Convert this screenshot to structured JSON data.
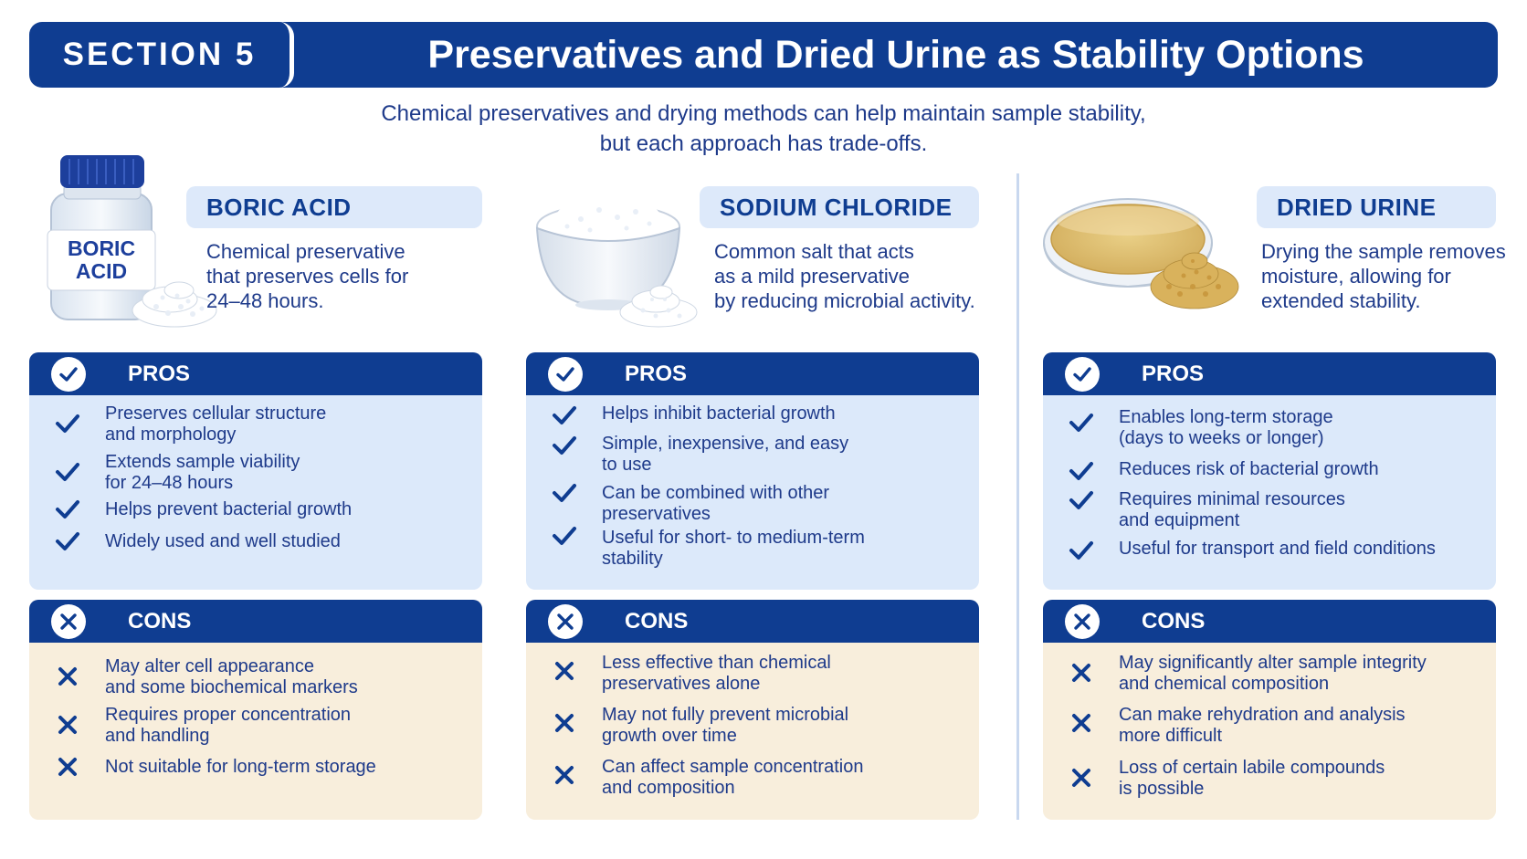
{
  "header": {
    "section_label": "SECTION 5",
    "title": "Preservatives and Dried Urine as Stability Options"
  },
  "subtitle": {
    "line1": "Chemical preservatives and drying methods can help maintain sample stability,",
    "line2": "but each approach has trade-offs."
  },
  "colors": {
    "navy": "#0f3d91",
    "pros_bg": "#dce9fa",
    "cons_bg": "#f8eedc",
    "pill_bg": "#dde9fa",
    "text": "#1e3a8a"
  },
  "columns": [
    {
      "name": "BORIC ACID",
      "illustration": {
        "kind": "jar-icon",
        "jar_label_line1": "BORIC",
        "jar_label_line2": "ACID"
      },
      "description": [
        "Chemical preservative",
        "that preserves cells for",
        "24–48 hours."
      ],
      "pros_title": "PROS",
      "pros": [
        {
          "lines": [
            "Preserves cellular structure",
            "and morphology"
          ]
        },
        {
          "lines": [
            "Extends sample viability",
            "for 24–48 hours"
          ]
        },
        {
          "lines": [
            "Helps prevent bacterial growth"
          ]
        },
        {
          "lines": [
            "Widely used and well studied"
          ]
        }
      ],
      "cons_title": "CONS",
      "cons": [
        {
          "lines": [
            "May alter cell appearance",
            "and some biochemical markers"
          ]
        },
        {
          "lines": [
            "Requires proper concentration",
            "and handling"
          ]
        },
        {
          "lines": [
            "Not suitable for long-term storage"
          ]
        }
      ]
    },
    {
      "name": "SODIUM CHLORIDE",
      "illustration": {
        "kind": "salt-bowl-icon"
      },
      "description": [
        "Common salt that acts",
        "as a mild preservative",
        "by reducing microbial activity."
      ],
      "pros_title": "PROS",
      "pros": [
        {
          "lines": [
            "Helps inhibit bacterial growth"
          ]
        },
        {
          "lines": [
            "Simple, inexpensive, and easy",
            "to use"
          ]
        },
        {
          "lines": [
            "Can be combined with other",
            "preservatives"
          ]
        },
        {
          "lines": [
            "Useful for short- to medium-term",
            "stability"
          ]
        }
      ],
      "cons_title": "CONS",
      "cons": [
        {
          "lines": [
            "Less effective than chemical",
            "preservatives alone"
          ]
        },
        {
          "lines": [
            "May not fully prevent microbial",
            "growth over time"
          ]
        },
        {
          "lines": [
            "Can affect sample concentration",
            "and composition"
          ]
        }
      ]
    },
    {
      "name": "DRIED URINE",
      "illustration": {
        "kind": "petri-dish-icon"
      },
      "description": [
        "Drying the sample removes",
        "moisture, allowing for",
        "extended stability."
      ],
      "pros_title": "PROS",
      "pros": [
        {
          "lines": [
            "Enables long-term storage",
            "(days to weeks or longer)"
          ]
        },
        {
          "lines": [
            "Reduces risk of bacterial growth"
          ]
        },
        {
          "lines": [
            "Requires minimal resources",
            "and equipment"
          ]
        },
        {
          "lines": [
            "Useful for transport and field conditions"
          ]
        }
      ],
      "cons_title": "CONS",
      "cons": [
        {
          "lines": [
            "May significantly alter sample integrity",
            "and chemical composition"
          ]
        },
        {
          "lines": [
            "Can make rehydration and analysis",
            "more difficult"
          ]
        },
        {
          "lines": [
            "Loss of certain labile compounds",
            "is possible"
          ]
        }
      ]
    }
  ]
}
